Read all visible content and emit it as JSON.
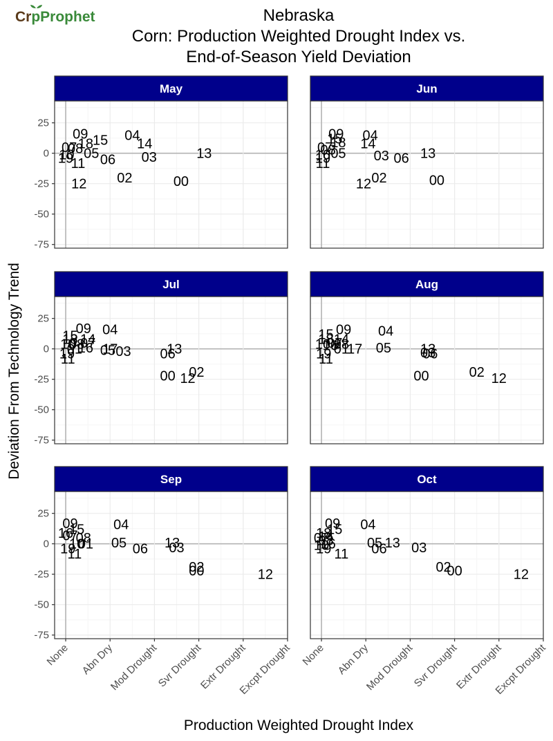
{
  "logo": {
    "part1": "Cr",
    "part2": "p",
    "part3": "Prophet"
  },
  "colors": {
    "strip_fill": "#00008B",
    "strip_text": "#ffffff",
    "panel_border": "#333333",
    "grid_major": "#EBEBEB",
    "grid_minor": "#F5F5F5",
    "zero_line": "#B3B3B3",
    "logo_brown": "#5A3A1A",
    "logo_green": "#3A8A3A"
  },
  "chart_data": {
    "type": "scatter",
    "title_lines": [
      "Nebraska",
      "Corn: Production Weighted Drought Index vs.",
      "End-of-Season Yield Deviation"
    ],
    "xlabel": "Production Weighted Drought Index",
    "ylabel": "Deviation From Technology Trend",
    "x_ticks": [
      0,
      1,
      2,
      3,
      4,
      5
    ],
    "x_tick_labels": [
      "None",
      "Abn Dry",
      "Mod Drought",
      "Svr Drought",
      "Extr Drought",
      "Excpt Drought"
    ],
    "xlim": [
      -0.25,
      5
    ],
    "y_ticks": [
      25,
      0,
      -25,
      -50,
      -75
    ],
    "y_tick_labels": [
      "25",
      "0",
      "-25",
      "-50",
      "-75"
    ],
    "ylim": [
      -78,
      43
    ],
    "grid": true,
    "point_labels": "two-digit year",
    "panels": [
      {
        "label": "May",
        "points": [
          {
            "label": "09",
            "x": 0.33,
            "y": 16
          },
          {
            "label": "15",
            "x": 0.78,
            "y": 11
          },
          {
            "label": "18",
            "x": 0.45,
            "y": 8
          },
          {
            "label": "04",
            "x": 1.5,
            "y": 15
          },
          {
            "label": "14",
            "x": 1.78,
            "y": 8
          },
          {
            "label": "07",
            "x": 0.08,
            "y": 5
          },
          {
            "label": "08",
            "x": 0.22,
            "y": 4
          },
          {
            "label": "05",
            "x": 0.58,
            "y": 0
          },
          {
            "label": "06",
            "x": 0.95,
            "y": -5
          },
          {
            "label": "03",
            "x": 1.88,
            "y": -3
          },
          {
            "label": "13",
            "x": 3.12,
            "y": 0
          },
          {
            "label": "10",
            "x": 0.02,
            "y": -1
          },
          {
            "label": "19",
            "x": 0.0,
            "y": -4
          },
          {
            "label": "11",
            "x": 0.28,
            "y": -8
          },
          {
            "label": "02",
            "x": 1.33,
            "y": -20
          },
          {
            "label": "00",
            "x": 2.6,
            "y": -23
          },
          {
            "label": "12",
            "x": 0.3,
            "y": -25
          }
        ]
      },
      {
        "label": "Jun",
        "points": [
          {
            "label": "09",
            "x": 0.33,
            "y": 16
          },
          {
            "label": "04",
            "x": 1.1,
            "y": 15
          },
          {
            "label": "15",
            "x": 0.3,
            "y": 12
          },
          {
            "label": "18",
            "x": 0.38,
            "y": 9
          },
          {
            "label": "14",
            "x": 1.05,
            "y": 8
          },
          {
            "label": "07",
            "x": 0.08,
            "y": 5
          },
          {
            "label": "08",
            "x": 0.15,
            "y": 3
          },
          {
            "label": "05",
            "x": 0.38,
            "y": 0
          },
          {
            "label": "13",
            "x": 2.4,
            "y": 0
          },
          {
            "label": "03",
            "x": 1.35,
            "y": -2
          },
          {
            "label": "06",
            "x": 1.8,
            "y": -4
          },
          {
            "label": "10",
            "x": 0.03,
            "y": -1
          },
          {
            "label": "19",
            "x": 0.03,
            "y": -4
          },
          {
            "label": "11",
            "x": 0.03,
            "y": -8
          },
          {
            "label": "02",
            "x": 1.3,
            "y": -20
          },
          {
            "label": "12",
            "x": 0.95,
            "y": -25
          },
          {
            "label": "00",
            "x": 2.6,
            "y": -22
          }
        ]
      },
      {
        "label": "Jul",
        "points": [
          {
            "label": "09",
            "x": 0.4,
            "y": 17
          },
          {
            "label": "04",
            "x": 1.0,
            "y": 16
          },
          {
            "label": "15",
            "x": 0.1,
            "y": 11
          },
          {
            "label": "18",
            "x": 0.1,
            "y": 8
          },
          {
            "label": "14",
            "x": 0.5,
            "y": 8
          },
          {
            "label": "07",
            "x": 0.5,
            "y": 5
          },
          {
            "label": "08",
            "x": 0.25,
            "y": 4
          },
          {
            "label": "10",
            "x": 0.05,
            "y": 4
          },
          {
            "label": "16",
            "x": 0.45,
            "y": 1
          },
          {
            "label": "01",
            "x": 0.2,
            "y": 0
          },
          {
            "label": "17",
            "x": 1.0,
            "y": 0
          },
          {
            "label": "05",
            "x": 0.95,
            "y": -1
          },
          {
            "label": "03",
            "x": 1.3,
            "y": -2
          },
          {
            "label": "13",
            "x": 2.45,
            "y": 0
          },
          {
            "label": "06",
            "x": 2.3,
            "y": -4
          },
          {
            "label": "19",
            "x": 0.03,
            "y": -4
          },
          {
            "label": "11",
            "x": 0.05,
            "y": -8
          },
          {
            "label": "00",
            "x": 2.3,
            "y": -22
          },
          {
            "label": "12",
            "x": 2.75,
            "y": -24
          },
          {
            "label": "02",
            "x": 2.95,
            "y": -19
          }
        ]
      },
      {
        "label": "Aug",
        "points": [
          {
            "label": "09",
            "x": 0.5,
            "y": 16
          },
          {
            "label": "04",
            "x": 1.45,
            "y": 15
          },
          {
            "label": "15",
            "x": 0.1,
            "y": 12
          },
          {
            "label": "14",
            "x": 0.45,
            "y": 8
          },
          {
            "label": "18",
            "x": 0.1,
            "y": 8
          },
          {
            "label": "07",
            "x": 0.3,
            "y": 5
          },
          {
            "label": "08",
            "x": 0.45,
            "y": 4
          },
          {
            "label": "10",
            "x": 0.03,
            "y": 4
          },
          {
            "label": "16",
            "x": 0.2,
            "y": 3
          },
          {
            "label": "01",
            "x": 0.45,
            "y": 0
          },
          {
            "label": "17",
            "x": 0.75,
            "y": 0
          },
          {
            "label": "05",
            "x": 1.4,
            "y": 1
          },
          {
            "label": "13",
            "x": 2.4,
            "y": 0
          },
          {
            "label": "03",
            "x": 2.4,
            "y": -3
          },
          {
            "label": "06",
            "x": 2.45,
            "y": -4
          },
          {
            "label": "19",
            "x": 0.05,
            "y": -4
          },
          {
            "label": "11",
            "x": 0.1,
            "y": -8
          },
          {
            "label": "00",
            "x": 2.25,
            "y": -22
          },
          {
            "label": "02",
            "x": 3.5,
            "y": -19
          },
          {
            "label": "12",
            "x": 4.0,
            "y": -24
          }
        ]
      },
      {
        "label": "Sep",
        "points": [
          {
            "label": "09",
            "x": 0.1,
            "y": 17
          },
          {
            "label": "04",
            "x": 1.25,
            "y": 16
          },
          {
            "label": "15",
            "x": 0.25,
            "y": 12
          },
          {
            "label": "16",
            "x": 0.0,
            "y": 9
          },
          {
            "label": "07",
            "x": 0.1,
            "y": 7
          },
          {
            "label": "08",
            "x": 0.4,
            "y": 5
          },
          {
            "label": "05",
            "x": 1.2,
            "y": 1
          },
          {
            "label": "13",
            "x": 2.4,
            "y": 1
          },
          {
            "label": "06",
            "x": 1.68,
            "y": -4
          },
          {
            "label": "03",
            "x": 2.5,
            "y": -3
          },
          {
            "label": "01",
            "x": 0.45,
            "y": 0
          },
          {
            "label": "10",
            "x": 0.25,
            "y": 0
          },
          {
            "label": "19",
            "x": 0.05,
            "y": -4
          },
          {
            "label": "11",
            "x": 0.2,
            "y": -8
          },
          {
            "label": "02",
            "x": 2.95,
            "y": -19
          },
          {
            "label": "00",
            "x": 2.95,
            "y": -22
          },
          {
            "label": "12",
            "x": 4.5,
            "y": -25
          }
        ]
      },
      {
        "label": "Oct",
        "points": [
          {
            "label": "09",
            "x": 0.25,
            "y": 17
          },
          {
            "label": "04",
            "x": 1.05,
            "y": 16
          },
          {
            "label": "15",
            "x": 0.3,
            "y": 12
          },
          {
            "label": "18",
            "x": 0.05,
            "y": 9
          },
          {
            "label": "14",
            "x": 0.1,
            "y": 6
          },
          {
            "label": "07",
            "x": 0.0,
            "y": 5
          },
          {
            "label": "08",
            "x": 0.1,
            "y": 3
          },
          {
            "label": "16",
            "x": 0.15,
            "y": 0
          },
          {
            "label": "10",
            "x": 0.0,
            "y": -1
          },
          {
            "label": "05",
            "x": 1.2,
            "y": 1
          },
          {
            "label": "13",
            "x": 1.6,
            "y": 1
          },
          {
            "label": "06",
            "x": 1.3,
            "y": -4
          },
          {
            "label": "03",
            "x": 2.2,
            "y": -3
          },
          {
            "label": "19",
            "x": 0.05,
            "y": -4
          },
          {
            "label": "11",
            "x": 0.45,
            "y": -8
          },
          {
            "label": "02",
            "x": 2.75,
            "y": -19
          },
          {
            "label": "00",
            "x": 3.0,
            "y": -22
          },
          {
            "label": "12",
            "x": 4.5,
            "y": -25
          }
        ]
      }
    ]
  }
}
